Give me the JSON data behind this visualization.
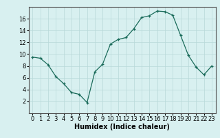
{
  "x": [
    0,
    1,
    2,
    3,
    4,
    5,
    6,
    7,
    8,
    9,
    10,
    11,
    12,
    13,
    14,
    15,
    16,
    17,
    18,
    19,
    20,
    21,
    22,
    23
  ],
  "y": [
    9.5,
    9.3,
    8.2,
    6.2,
    5.0,
    3.5,
    3.2,
    1.8,
    7.0,
    8.3,
    11.7,
    12.5,
    12.8,
    14.3,
    16.2,
    16.5,
    17.3,
    17.2,
    16.6,
    13.2,
    9.8,
    7.8,
    6.5,
    8.0
  ],
  "xlabel": "Humidex (Indice chaleur)",
  "ylim": [
    0,
    18
  ],
  "xlim": [
    -0.5,
    23.5
  ],
  "yticks": [
    2,
    4,
    6,
    8,
    10,
    12,
    14,
    16
  ],
  "xticks": [
    0,
    1,
    2,
    3,
    4,
    5,
    6,
    7,
    8,
    9,
    10,
    11,
    12,
    13,
    14,
    15,
    16,
    17,
    18,
    19,
    20,
    21,
    22,
    23
  ],
  "line_color": "#1a6b5a",
  "marker": "+",
  "bg_color": "#d8f0f0",
  "grid_color": "#b8d8d8",
  "axis_label_fontsize": 7,
  "tick_fontsize": 6
}
